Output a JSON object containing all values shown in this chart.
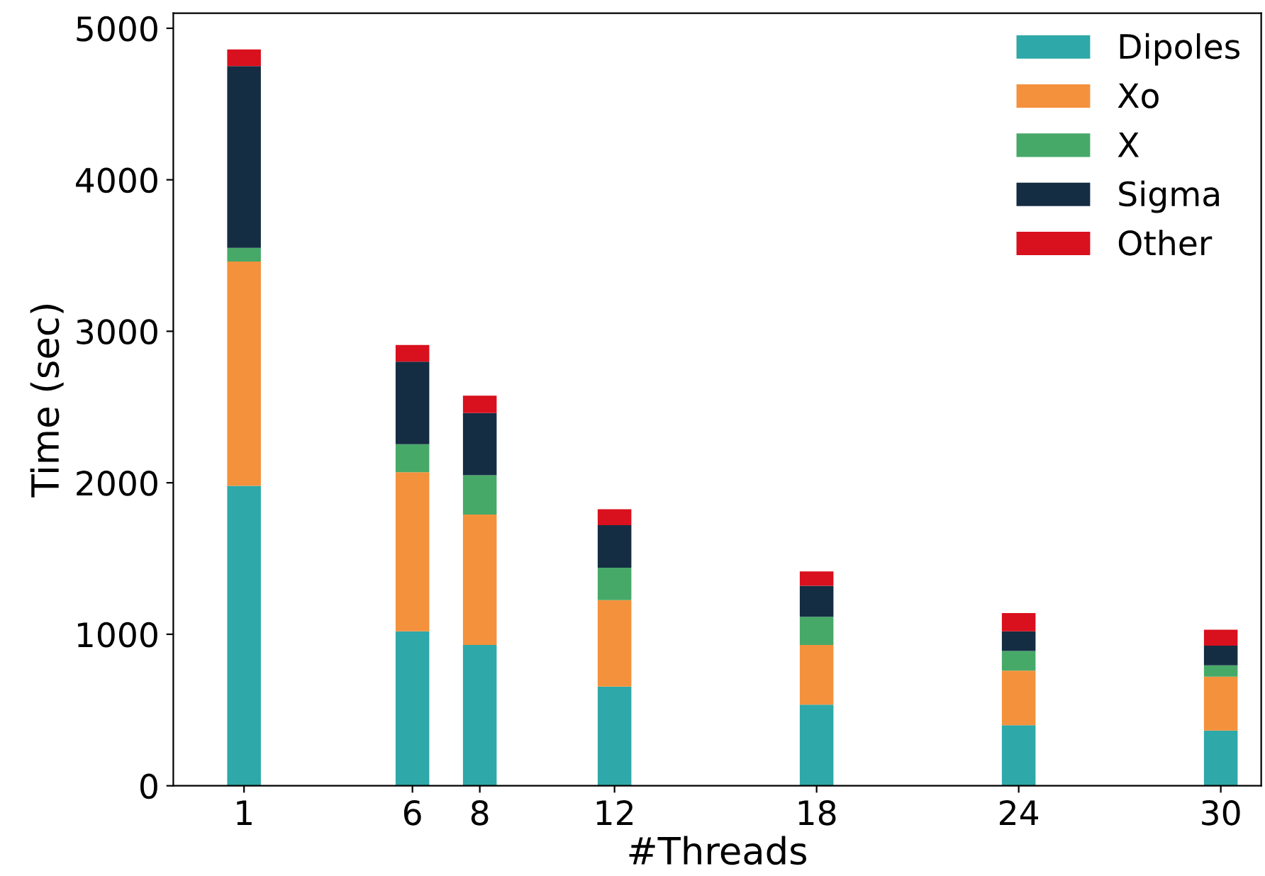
{
  "chart_data": {
    "type": "bar",
    "stacked": true,
    "xlabel": "#Threads",
    "ylabel": "Time (sec)",
    "x": [
      1,
      6,
      8,
      12,
      18,
      24,
      30
    ],
    "xlim": [
      -1.1,
      31.2
    ],
    "xticks": [
      1,
      6,
      8,
      12,
      18,
      24,
      30
    ],
    "ylim": [
      0,
      5100
    ],
    "yticks": [
      0,
      1000,
      2000,
      3000,
      4000,
      5000
    ],
    "grid": false,
    "legend": "top right",
    "series": [
      {
        "name": "Dipoles",
        "color": "#2ea8a8",
        "values": [
          1980,
          1020,
          930,
          655,
          535,
          400,
          365
        ]
      },
      {
        "name": "Xo",
        "color": "#f4913c",
        "values": [
          1480,
          1050,
          860,
          570,
          395,
          360,
          355
        ]
      },
      {
        "name": "X",
        "color": "#47a968",
        "values": [
          90,
          185,
          260,
          215,
          185,
          130,
          75
        ]
      },
      {
        "name": "Sigma",
        "color": "#142d43",
        "values": [
          1200,
          545,
          410,
          280,
          205,
          130,
          130
        ]
      },
      {
        "name": "Other",
        "color": "#d9101e",
        "values": [
          110,
          110,
          115,
          105,
          95,
          120,
          105
        ]
      }
    ]
  }
}
